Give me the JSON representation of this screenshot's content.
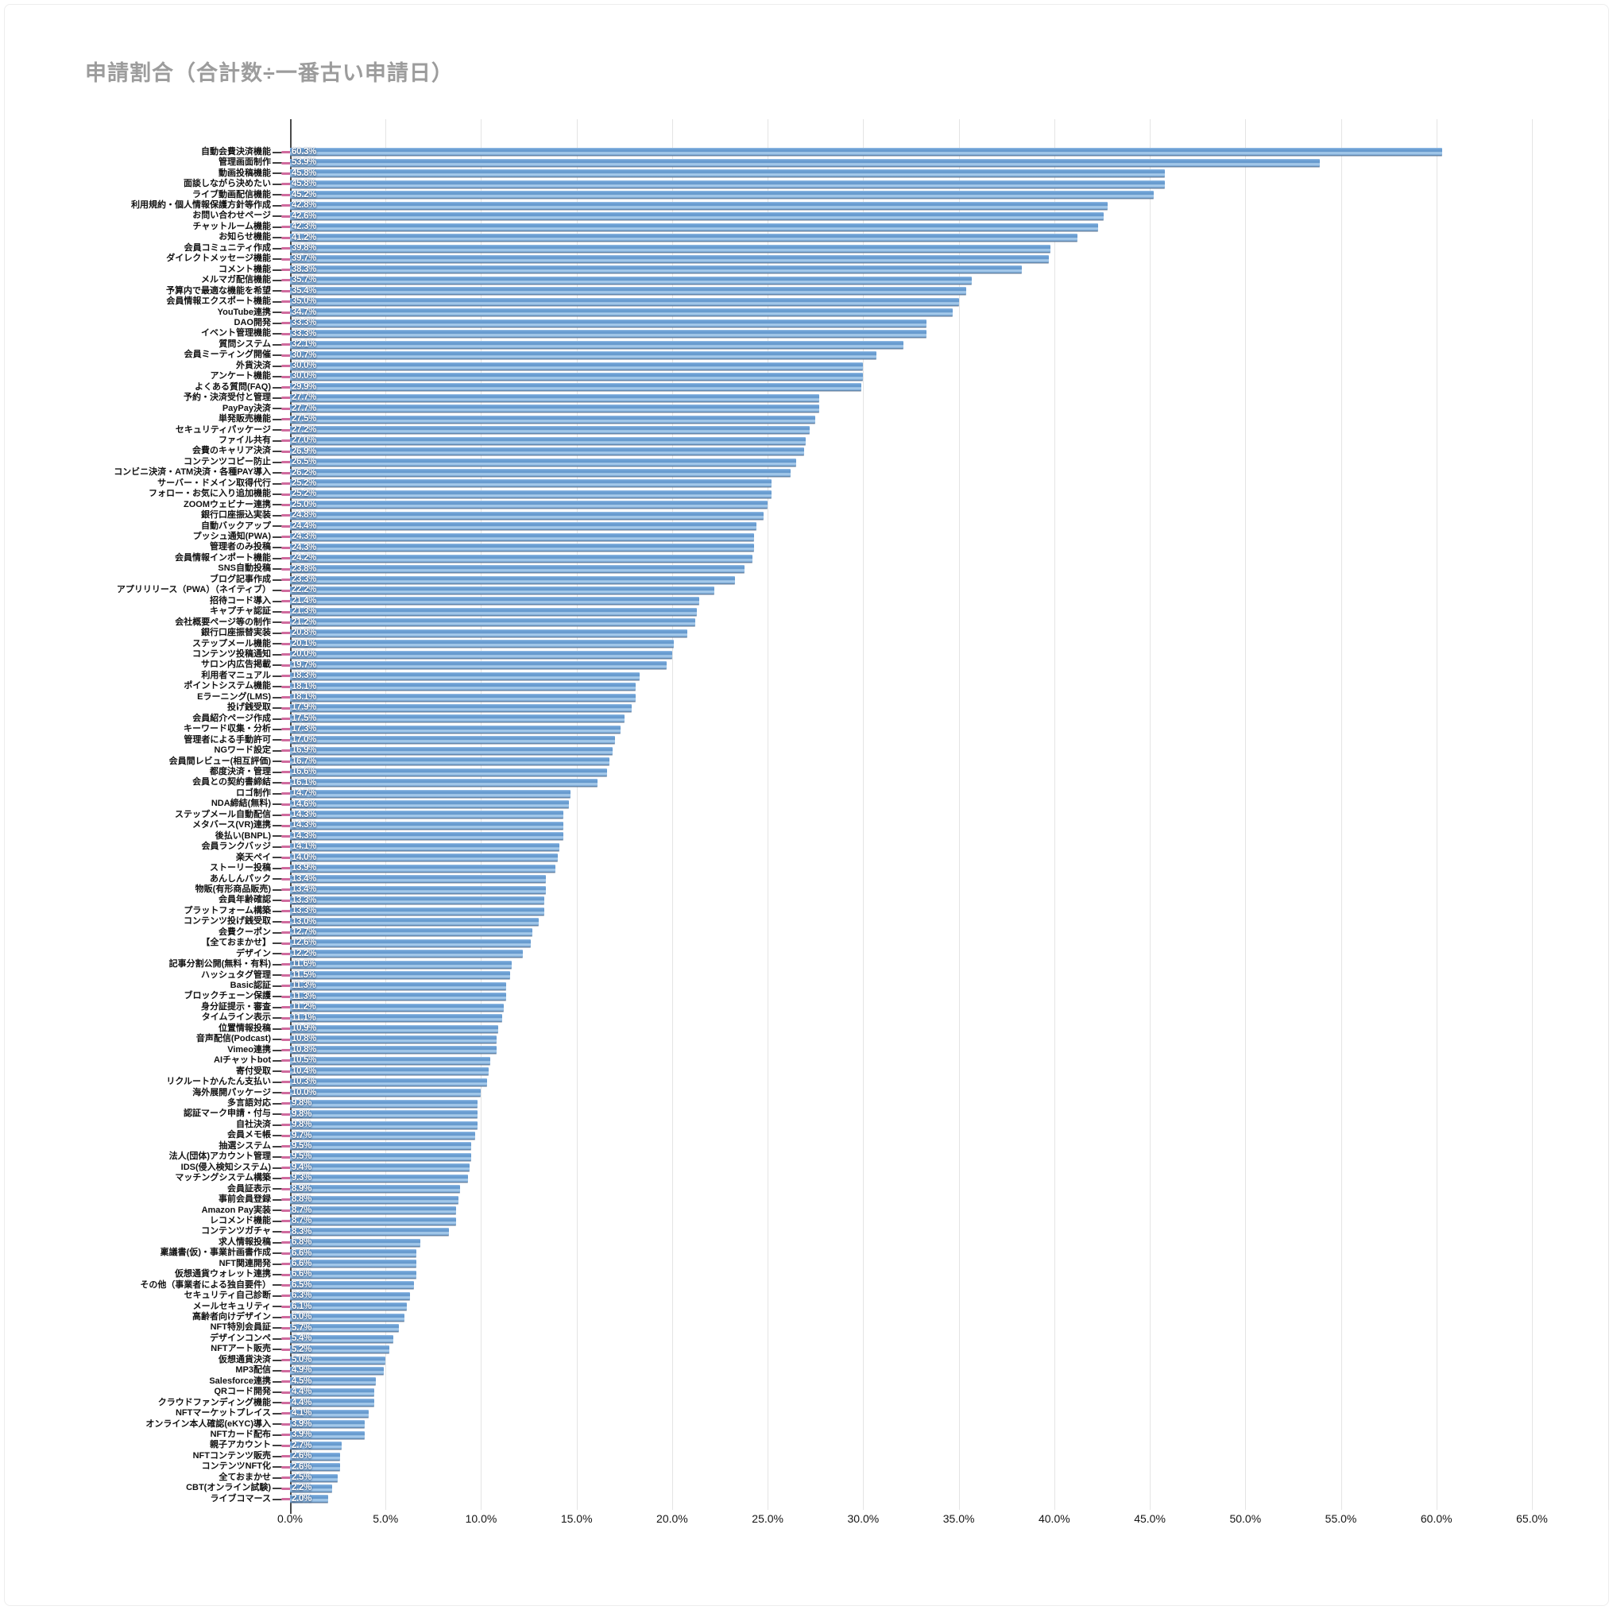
{
  "chart_data": {
    "type": "bar",
    "orientation": "horizontal",
    "title": "申請割合（合計数÷一番古い申請日）",
    "value_suffix": "%",
    "xlim": [
      0,
      65
    ],
    "grid": true,
    "x_ticks": [
      "0.0%",
      "5.0%",
      "10.0%",
      "15.0%",
      "20.0%",
      "25.0%",
      "30.0%",
      "35.0%",
      "40.0%",
      "45.0%",
      "50.0%",
      "55.0%",
      "60.0%",
      "65.0%"
    ],
    "colors": {
      "bar_main": "#6699cc",
      "bar_highlight": "#b0d1ef",
      "bar_shadow": "#4e7194",
      "category_marker": "#d06b9e",
      "gridline": "#e4e4e4",
      "axis_line": "#4a4a4a",
      "title_text": "#9c9c9c",
      "label_text": "#111111",
      "value_text": "#ffffff"
    },
    "categories": [
      "自動会費決済機能",
      "管理画面制作",
      "動画投稿機能",
      "面談しながら決めたい",
      "ライブ動画配信機能",
      "利用規約・個人情報保護方針等作成",
      "お問い合わせページ",
      "チャットルーム機能",
      "お知らせ機能",
      "会員コミュニティ作成",
      "ダイレクトメッセージ機能",
      "コメント機能",
      "メルマガ配信機能",
      "予算内で最適な機能を希望",
      "会員情報エクスポート機能",
      "YouTube連携",
      "DAO開発",
      "イベント管理機能",
      "質問システム",
      "会員ミーティング開催",
      "外貨決済",
      "アンケート機能",
      "よくある質問(FAQ)",
      "予約・決済受付と管理",
      "PayPay決済",
      "単発販売機能",
      "セキュリティパッケージ",
      "ファイル共有",
      "会費のキャリア決済",
      "コンテンツコピー防止",
      "コンビニ決済・ATM決済・各種PAY導入",
      "サーバー・ドメイン取得代行",
      "フォロー・お気に入り追加機能",
      "ZOOMウェビナー連携",
      "銀行口座振込実装",
      "自動バックアップ",
      "プッシュ通知(PWA)",
      "管理者のみ投稿",
      "会員情報インポート機能",
      "SNS自動投稿",
      "ブログ記事作成",
      "アプリリリース（PWA）（ネイティブ）",
      "招待コード導入",
      "キャプチャ認証",
      "会社概要ページ等の制作",
      "銀行口座振替実装",
      "ステップメール機能",
      "コンテンツ投稿通知",
      "サロン内広告掲載",
      "利用者マニュアル",
      "ポイントシステム機能",
      "Eラーニング(LMS)",
      "投げ銭受取",
      "会員紹介ページ作成",
      "キーワード収集・分析",
      "管理者による手動許可",
      "NGワード設定",
      "会員間レビュー(相互評価)",
      "都度決済・管理",
      "会員との契約書締結",
      "ロゴ制作",
      "NDA締結(無料)",
      "ステップメール自動配信",
      "メタバース(VR)連携",
      "後払い(BNPL)",
      "会員ランクバッジ",
      "楽天ペイ",
      "ストーリー投稿",
      "あんしんパック",
      "物販(有形商品販売)",
      "会員年齢確認",
      "プラットフォーム構築",
      "コンテンツ投げ銭受取",
      "会費クーポン",
      "【全ておまかせ】",
      "デザイン",
      "記事分割公開(無料・有料)",
      "ハッシュタグ管理",
      "Basic認証",
      "ブロックチェーン保護",
      "身分証提示・審査",
      "タイムライン表示",
      "位置情報投稿",
      "音声配信(Podcast)",
      "Vimeo連携",
      "AIチャットbot",
      "寄付受取",
      "リクルートかんたん支払い",
      "海外展開パッケージ",
      "多言語対応",
      "認証マーク申請・付与",
      "自社決済",
      "会員メモ帳",
      "抽選システム",
      "法人(団体)アカウント管理",
      "IDS(侵入検知システム)",
      "マッチングシステム構築",
      "会員証表示",
      "事前会員登録",
      "Amazon Pay実装",
      "レコメンド機能",
      "コンテンツガチャ",
      "求人情報投稿",
      "稟議書(仮)・事業計画書作成",
      "NFT関連開発",
      "仮想通貨ウォレット連携",
      "その他（事業者による独自要件）",
      "セキュリティ自己診断",
      "メールセキュリティ",
      "高齢者向けデザイン",
      "NFT特別会員証",
      "デザインコンペ",
      "NFTアート販売",
      "仮想通貨決済",
      "MP3配信",
      "Salesforce連携",
      "QRコード開発",
      "クラウドファンディング機能",
      "NFTマーケットプレイス",
      "オンライン本人確認(eKYC)導入",
      "NFTカード配布",
      "親子アカウント",
      "NFTコンテンツ販売",
      "コンテンツNFT化",
      "全ておまかせ",
      "CBT(オンライン試験)",
      "ライブコマース"
    ],
    "values": [
      60.3,
      53.9,
      45.8,
      45.8,
      45.2,
      42.8,
      42.6,
      42.3,
      41.2,
      39.8,
      39.7,
      38.3,
      35.7,
      35.4,
      35.0,
      34.7,
      33.3,
      33.3,
      32.1,
      30.7,
      30.0,
      30.0,
      29.9,
      27.7,
      27.7,
      27.5,
      27.2,
      27.0,
      26.9,
      26.5,
      26.2,
      25.2,
      25.2,
      25.0,
      24.8,
      24.4,
      24.3,
      24.3,
      24.2,
      23.8,
      23.3,
      22.2,
      21.4,
      21.3,
      21.2,
      20.8,
      20.1,
      20.0,
      19.7,
      18.3,
      18.1,
      18.1,
      17.9,
      17.5,
      17.3,
      17.0,
      16.9,
      16.7,
      16.6,
      16.1,
      14.7,
      14.6,
      14.3,
      14.3,
      14.3,
      14.1,
      14.0,
      13.9,
      13.4,
      13.4,
      13.3,
      13.3,
      13.0,
      12.7,
      12.6,
      12.2,
      11.6,
      11.5,
      11.3,
      11.3,
      11.2,
      11.1,
      10.9,
      10.8,
      10.8,
      10.5,
      10.4,
      10.3,
      10.0,
      9.8,
      9.8,
      9.8,
      9.7,
      9.5,
      9.5,
      9.4,
      9.3,
      8.9,
      8.8,
      8.7,
      8.7,
      8.3,
      6.8,
      6.6,
      6.6,
      6.6,
      6.5,
      6.3,
      6.1,
      6.0,
      5.7,
      5.4,
      5.2,
      5.0,
      4.9,
      4.5,
      4.4,
      4.4,
      4.1,
      3.9,
      3.9,
      2.7,
      2.6,
      2.6,
      2.5,
      2.2,
      2.0
    ]
  }
}
